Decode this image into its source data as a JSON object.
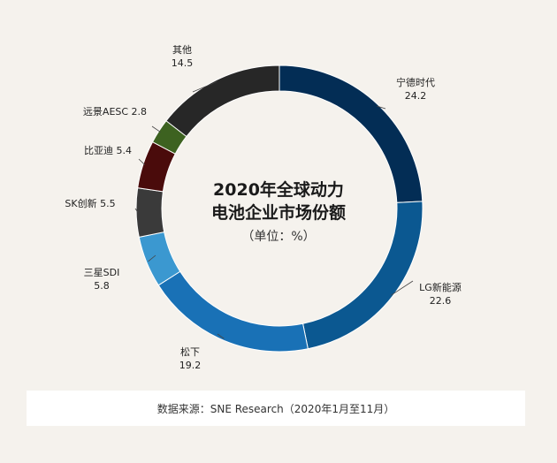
{
  "chart_data": {
    "type": "donut",
    "title_line1": "2020年全球动力",
    "title_line2": "电池企业市场份额",
    "unit": "（单位：%）",
    "series": [
      {
        "name": "宁德时代",
        "value": 24.2,
        "color": "#032d55"
      },
      {
        "name": "LG新能源",
        "value": 22.6,
        "color": "#0b5891"
      },
      {
        "name": "松下",
        "value": 19.2,
        "color": "#1971b6"
      },
      {
        "name": "三星SDI",
        "value": 5.8,
        "color": "#3b98d0"
      },
      {
        "name": "SK创新",
        "value": 5.5,
        "color": "#3a3a3a"
      },
      {
        "name": "比亚迪",
        "value": 5.4,
        "color": "#4a0b0b"
      },
      {
        "name": "远景AESC",
        "value": 2.8,
        "color": "#3d6220"
      },
      {
        "name": "其他",
        "value": 14.5,
        "color": "#272727"
      }
    ]
  },
  "labels": [
    {
      "name": "宁德时代",
      "value": "24.2"
    },
    {
      "name": "LG新能源",
      "value": "22.6"
    },
    {
      "name": "松下",
      "value": "19.2"
    },
    {
      "name": "三星SDI",
      "value": "5.8"
    },
    {
      "name": "SK创新",
      "value": "5.5"
    },
    {
      "name": "比亚迪",
      "value": "5.4"
    },
    {
      "name": "远景AESC",
      "value": "2.8"
    },
    {
      "name": "其他",
      "value": "14.5"
    }
  ],
  "source": "数据来源：SNE Research（2020年1月至11月）"
}
